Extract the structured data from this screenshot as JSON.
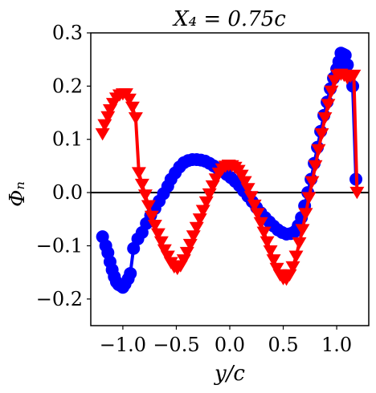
{
  "chart_data": {
    "type": "line",
    "title": "X₄ = 0.75c",
    "xlabel": "y/c",
    "ylabel": "Φₙ",
    "xlim": [
      -1.3,
      1.3
    ],
    "ylim": [
      -0.25,
      0.3
    ],
    "xticks": [
      -1.0,
      -0.5,
      0.0,
      0.5,
      1.0
    ],
    "xtick_labels": [
      "−1.0",
      "−0.5",
      "0.0",
      "0.5",
      "1.0"
    ],
    "yticks": [
      -0.2,
      -0.1,
      0.0,
      0.1,
      0.2,
      0.3
    ],
    "ytick_labels": [
      "−0.2",
      "−0.1",
      "0.0",
      "0.1",
      "0.2",
      "0.3"
    ],
    "grid": false,
    "zero_line": 0.0,
    "series": [
      {
        "marker": "circle",
        "color": "#0000ff",
        "x": [
          -1.19,
          -1.16,
          -1.14,
          -1.12,
          -1.1,
          -1.08,
          -1.06,
          -1.04,
          -1.02,
          -1.0,
          -0.98,
          -0.95,
          -0.93,
          -0.9,
          -0.86,
          -0.82,
          -0.78,
          -0.74,
          -0.7,
          -0.66,
          -0.62,
          -0.58,
          -0.55,
          -0.51,
          -0.47,
          -0.43,
          -0.39,
          -0.35,
          -0.31,
          -0.27,
          -0.23,
          -0.19,
          -0.15,
          -0.11,
          -0.07,
          -0.03,
          0.01,
          0.05,
          0.09,
          0.13,
          0.17,
          0.21,
          0.25,
          0.29,
          0.33,
          0.37,
          0.41,
          0.45,
          0.49,
          0.53,
          0.57,
          0.61,
          0.64,
          0.67,
          0.7,
          0.73,
          0.76,
          0.79,
          0.82,
          0.85,
          0.88,
          0.91,
          0.94,
          0.97,
          1.0,
          1.02,
          1.04,
          1.06,
          1.08,
          1.1,
          1.12,
          1.15,
          1.18
        ],
        "y": [
          -0.083,
          -0.1,
          -0.113,
          -0.13,
          -0.145,
          -0.158,
          -0.168,
          -0.173,
          -0.175,
          -0.178,
          -0.172,
          -0.162,
          -0.152,
          -0.105,
          -0.087,
          -0.075,
          -0.058,
          -0.043,
          -0.03,
          -0.016,
          -0.002,
          0.012,
          0.025,
          0.037,
          0.048,
          0.056,
          0.06,
          0.062,
          0.062,
          0.061,
          0.059,
          0.055,
          0.05,
          0.045,
          0.04,
          0.034,
          0.028,
          0.021,
          0.013,
          0.003,
          -0.007,
          -0.017,
          -0.028,
          -0.038,
          -0.047,
          -0.055,
          -0.063,
          -0.07,
          -0.075,
          -0.078,
          -0.077,
          -0.073,
          -0.062,
          -0.047,
          -0.025,
          0.0,
          0.025,
          0.055,
          0.085,
          0.115,
          0.145,
          0.17,
          0.195,
          0.215,
          0.232,
          0.246,
          0.262,
          0.26,
          0.258,
          0.24,
          0.22,
          0.2,
          0.025
        ]
      },
      {
        "marker": "triangle-down",
        "color": "#ff0000",
        "x": [
          -1.19,
          -1.17,
          -1.14,
          -1.12,
          -1.09,
          -1.06,
          -1.03,
          -1.0,
          -0.97,
          -0.94,
          -0.91,
          -0.88,
          -0.85,
          -0.82,
          -0.79,
          -0.76,
          -0.73,
          -0.7,
          -0.67,
          -0.64,
          -0.61,
          -0.58,
          -0.55,
          -0.52,
          -0.49,
          -0.46,
          -0.43,
          -0.4,
          -0.37,
          -0.34,
          -0.31,
          -0.28,
          -0.25,
          -0.22,
          -0.19,
          -0.16,
          -0.13,
          -0.1,
          -0.07,
          -0.04,
          -0.01,
          0.02,
          0.05,
          0.08,
          0.11,
          0.14,
          0.17,
          0.2,
          0.23,
          0.26,
          0.29,
          0.32,
          0.35,
          0.38,
          0.41,
          0.44,
          0.47,
          0.5,
          0.53,
          0.56,
          0.59,
          0.62,
          0.65,
          0.68,
          0.71,
          0.74,
          0.77,
          0.8,
          0.83,
          0.86,
          0.89,
          0.92,
          0.95,
          0.98,
          1.01,
          1.04,
          1.07,
          1.1,
          1.13,
          1.16,
          1.19
        ],
        "y": [
          0.11,
          0.127,
          0.142,
          0.155,
          0.167,
          0.177,
          0.183,
          0.185,
          0.185,
          0.175,
          0.16,
          0.14,
          0.037,
          0.015,
          -0.005,
          -0.025,
          -0.045,
          -0.062,
          -0.078,
          -0.093,
          -0.108,
          -0.12,
          -0.132,
          -0.14,
          -0.143,
          -0.138,
          -0.127,
          -0.113,
          -0.098,
          -0.082,
          -0.066,
          -0.05,
          -0.034,
          -0.018,
          -0.003,
          0.012,
          0.025,
          0.036,
          0.044,
          0.049,
          0.051,
          0.05,
          0.047,
          0.041,
          0.032,
          0.02,
          0.007,
          -0.008,
          -0.024,
          -0.04,
          -0.057,
          -0.075,
          -0.093,
          -0.11,
          -0.127,
          -0.143,
          -0.155,
          -0.162,
          -0.163,
          -0.155,
          -0.14,
          -0.12,
          -0.095,
          -0.07,
          -0.04,
          -0.01,
          0.02,
          0.05,
          0.08,
          0.11,
          0.14,
          0.165,
          0.19,
          0.21,
          0.22,
          0.222,
          0.22,
          0.215,
          0.218,
          0.22,
          0.0
        ]
      }
    ]
  }
}
